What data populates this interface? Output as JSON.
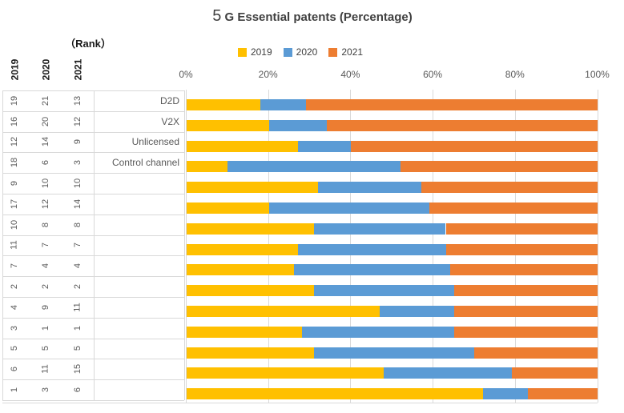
{
  "title": {
    "prefix": "5",
    "rest": " G Essential patents (Percentage)"
  },
  "rank_panel": {
    "header": "（Rank）",
    "columns": [
      "2019",
      "2020",
      "2021"
    ]
  },
  "legend": {
    "items": [
      {
        "label": "2019",
        "color": "#FFC000"
      },
      {
        "label": "2020",
        "color": "#5B9BD5"
      },
      {
        "label": "2021",
        "color": "#ED7D31"
      }
    ]
  },
  "x_axis": {
    "ticks": [
      "0%",
      "20%",
      "40%",
      "60%",
      "80%",
      "100%"
    ]
  },
  "colors": {
    "grid": "#d9d9d9",
    "axis_text": "#595959",
    "title_text": "#404040"
  },
  "chart_data": {
    "type": "bar",
    "orientation": "horizontal",
    "stacked": true,
    "stack_total_percent": 100,
    "title": "5 G Essential patents (Percentage)",
    "xlabel": "",
    "ylabel": "",
    "xlim": [
      0,
      100
    ],
    "x_tick_labels": [
      "0%",
      "20%",
      "40%",
      "60%",
      "80%",
      "100%"
    ],
    "grid": true,
    "legend_position": "top",
    "categories": [
      "D2D",
      "V2X",
      "Unlicensed",
      "Control channel",
      "",
      "",
      "",
      "",
      "",
      "",
      "",
      "",
      "",
      "",
      ""
    ],
    "ranks_by_year": {
      "2019": [
        19,
        16,
        12,
        18,
        9,
        17,
        10,
        11,
        7,
        2,
        4,
        3,
        5,
        6,
        1
      ],
      "2020": [
        21,
        20,
        14,
        6,
        10,
        12,
        8,
        7,
        4,
        2,
        9,
        1,
        5,
        11,
        3
      ],
      "2021": [
        13,
        12,
        9,
        3,
        10,
        14,
        8,
        7,
        4,
        2,
        11,
        1,
        5,
        15,
        6
      ]
    },
    "series": [
      {
        "name": "2019",
        "color": "#FFC000",
        "values": [
          18,
          20,
          27,
          10,
          32,
          20,
          31,
          27,
          26,
          31,
          47,
          28,
          31,
          48,
          72
        ]
      },
      {
        "name": "2020",
        "color": "#5B9BD5",
        "values": [
          11,
          14,
          13,
          42,
          25,
          39,
          32,
          36,
          38,
          34,
          18,
          37,
          39,
          31,
          11
        ]
      },
      {
        "name": "2021",
        "color": "#ED7D31",
        "values": [
          71,
          66,
          60,
          48,
          43,
          41,
          37,
          37,
          36,
          35,
          35,
          35,
          30,
          21,
          17
        ]
      }
    ]
  }
}
